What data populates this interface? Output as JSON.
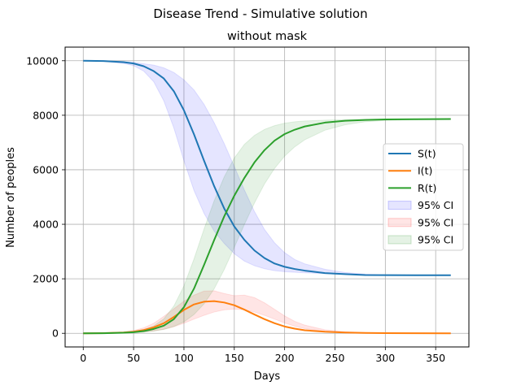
{
  "chart_data": {
    "type": "line",
    "suptitle": "Disease Trend - Simulative solution",
    "title": "without mask",
    "xlabel": "Days",
    "ylabel": "Number of peoples",
    "xlim": [
      -18,
      383
    ],
    "ylim": [
      -500,
      10500
    ],
    "xticks": [
      0,
      50,
      100,
      150,
      200,
      250,
      300,
      350
    ],
    "yticks": [
      0,
      2000,
      4000,
      6000,
      8000,
      10000
    ],
    "grid": true,
    "legend_position": "center-right",
    "x": [
      0,
      20,
      40,
      50,
      60,
      70,
      80,
      90,
      100,
      110,
      120,
      130,
      140,
      150,
      160,
      170,
      180,
      190,
      200,
      210,
      220,
      240,
      260,
      280,
      300,
      330,
      365
    ],
    "series": [
      {
        "name": "S(t)",
        "color": "#1f77b4",
        "values": [
          10000,
          9990,
          9950,
          9900,
          9800,
          9620,
          9350,
          8880,
          8180,
          7300,
          6330,
          5400,
          4580,
          3920,
          3430,
          3040,
          2760,
          2560,
          2440,
          2360,
          2300,
          2210,
          2170,
          2140,
          2135,
          2130,
          2130
        ]
      },
      {
        "name": "I(t)",
        "color": "#ff7f0e",
        "values": [
          0,
          8,
          30,
          60,
          120,
          220,
          370,
          600,
          860,
          1060,
          1160,
          1180,
          1130,
          1030,
          870,
          690,
          520,
          370,
          250,
          170,
          110,
          60,
          30,
          15,
          8,
          3,
          1
        ]
      },
      {
        "name": "R(t)",
        "color": "#2ca02c",
        "values": [
          0,
          2,
          20,
          40,
          80,
          160,
          280,
          520,
          960,
          1640,
          2510,
          3420,
          4290,
          5050,
          5700,
          6270,
          6720,
          7070,
          7310,
          7470,
          7590,
          7730,
          7800,
          7830,
          7845,
          7855,
          7860
        ]
      }
    ],
    "confidence_bands": [
      {
        "name": "95% CI",
        "color": "#0000ff",
        "opacity": 0.1,
        "lower": [
          10000,
          9980,
          9900,
          9820,
          9620,
          9230,
          8530,
          7530,
          6330,
          5240,
          4400,
          3750,
          3300,
          2920,
          2650,
          2480,
          2370,
          2300,
          2260,
          2240,
          2220,
          2190,
          2160,
          2140,
          2135,
          2130,
          2130
        ],
        "upper": [
          10000,
          9995,
          9970,
          9940,
          9890,
          9840,
          9740,
          9570,
          9300,
          8930,
          8400,
          7730,
          6960,
          6120,
          5260,
          4470,
          3810,
          3320,
          2960,
          2710,
          2550,
          2350,
          2230,
          2170,
          2145,
          2135,
          2130
        ]
      },
      {
        "name": "95% CI",
        "color": "#ff0000",
        "opacity": 0.1,
        "lower": [
          0,
          5,
          15,
          30,
          50,
          90,
          150,
          240,
          370,
          520,
          660,
          780,
          860,
          890,
          860,
          780,
          660,
          520,
          380,
          260,
          170,
          70,
          30,
          12,
          5,
          2,
          0
        ],
        "upper": [
          0,
          12,
          50,
          100,
          200,
          370,
          620,
          900,
          1180,
          1400,
          1550,
          1560,
          1460,
          1380,
          1400,
          1310,
          1120,
          880,
          640,
          440,
          300,
          130,
          60,
          25,
          10,
          4,
          1
        ]
      },
      {
        "name": "95% CI",
        "color": "#008000",
        "opacity": 0.1,
        "lower": [
          0,
          1,
          8,
          20,
          40,
          80,
          140,
          250,
          420,
          690,
          1080,
          1630,
          2340,
          3150,
          3990,
          4780,
          5480,
          6050,
          6500,
          6840,
          7100,
          7450,
          7650,
          7760,
          7810,
          7850,
          7860
        ],
        "upper": [
          0,
          5,
          30,
          60,
          130,
          270,
          530,
          1000,
          1740,
          2730,
          3830,
          4860,
          5740,
          6430,
          6930,
          7260,
          7480,
          7620,
          7710,
          7760,
          7790,
          7820,
          7840,
          7850,
          7855,
          7860,
          7860
        ]
      }
    ]
  }
}
